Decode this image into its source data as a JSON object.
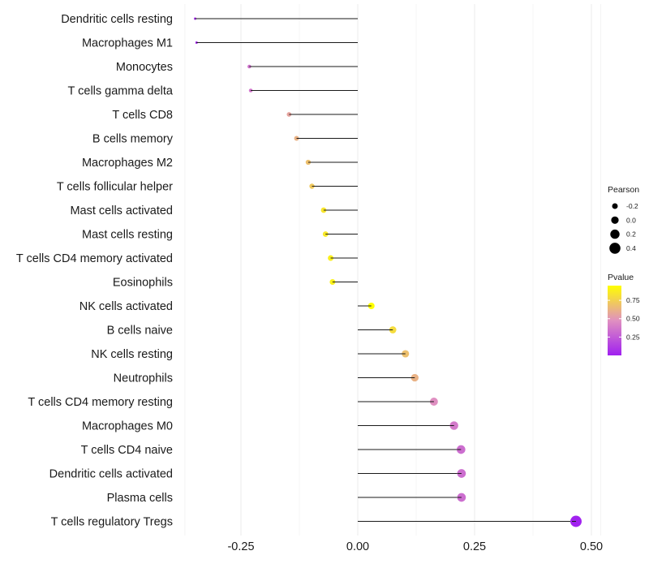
{
  "chart_data": {
    "type": "lollipop",
    "title": "",
    "xlabel": "",
    "ylabel": "",
    "xlim": [
      -0.37,
      0.52
    ],
    "xticks": [
      -0.25,
      0,
      0.25,
      0.5
    ],
    "xtick_labels": [
      "-0.25",
      "0.00",
      "0.25",
      "0.50"
    ],
    "grid": true,
    "categories": [
      "Dendritic cells resting",
      "Macrophages M1",
      "Monocytes",
      "T cells gamma delta",
      "T cells CD8",
      "B cells memory",
      "Macrophages M2",
      "T cells follicular helper",
      "Mast cells activated",
      "Mast cells resting",
      "T cells CD4 memory activated",
      "Eosinophils",
      "NK cells activated",
      "B cells naive",
      "NK cells resting",
      "Neutrophils",
      "T cells CD4 memory resting",
      "Macrophages M0",
      "T cells CD4 naive",
      "Dendritic cells activated",
      "Plasma cells",
      "T cells regulatory  Tregs"
    ],
    "pearson": [
      -0.348,
      -0.345,
      -0.232,
      -0.229,
      -0.147,
      -0.131,
      -0.106,
      -0.098,
      -0.073,
      -0.069,
      -0.058,
      -0.054,
      0.029,
      0.075,
      0.102,
      0.122,
      0.163,
      0.206,
      0.221,
      0.222,
      0.222,
      0.467
    ],
    "pvalue": [
      0.04,
      0.04,
      0.35,
      0.36,
      0.56,
      0.62,
      0.68,
      0.72,
      0.84,
      0.85,
      0.88,
      0.89,
      0.95,
      0.8,
      0.68,
      0.62,
      0.47,
      0.38,
      0.33,
      0.33,
      0.33,
      0.01
    ],
    "legend_size": {
      "title": "Pearson",
      "labels": [
        "-0.2",
        "0.0",
        "0.2",
        "0.4"
      ],
      "values": [
        -0.2,
        0.0,
        0.2,
        0.4
      ],
      "position": "right"
    },
    "legend_color": {
      "title": "Pvalue",
      "labels": [
        "0.75",
        "0.50",
        "0.25"
      ],
      "values": [
        0.75,
        0.5,
        0.25
      ],
      "range": [
        0.0,
        0.95
      ],
      "low_color": "#a020f0",
      "mid_color": "#e090c0",
      "high_color": "#ffff00",
      "position": "right"
    }
  }
}
